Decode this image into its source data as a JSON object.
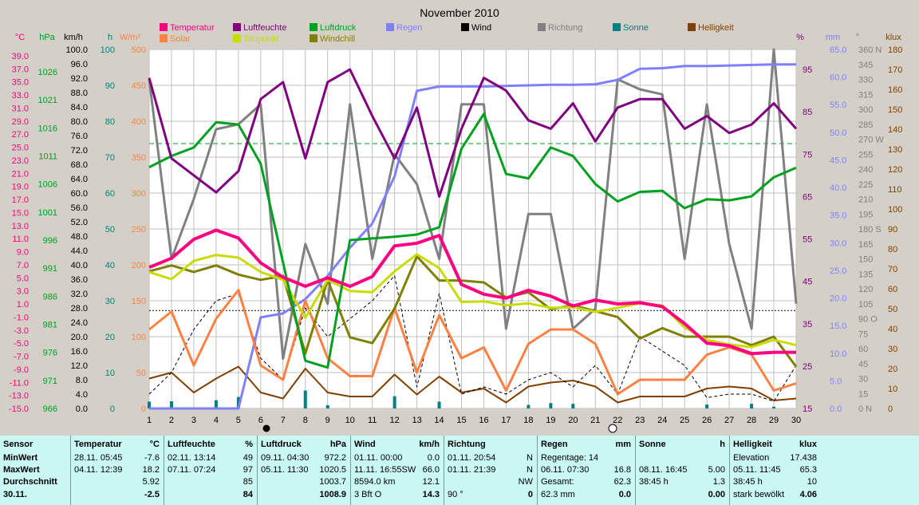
{
  "title": "November 2010",
  "legend": [
    {
      "name": "Temperatur",
      "color": "#ff0080"
    },
    {
      "name": "Solar",
      "color": "#ff8040"
    },
    {
      "name": "Luftfeuchte",
      "color": "#800080"
    },
    {
      "name": "Taupunkt",
      "color": "#c8dc00"
    },
    {
      "name": "Luftdruck",
      "color": "#00a020"
    },
    {
      "name": "Windchill",
      "color": "#808000"
    },
    {
      "name": "Regen",
      "color": "#8080ff"
    },
    {
      "name": "Wind",
      "color": "#000000"
    },
    {
      "name": "Richtung",
      "color": "#808080"
    },
    {
      "name": "Sonne",
      "color": "#008080"
    },
    {
      "name": "Helligkeit",
      "color": "#804000"
    }
  ],
  "axes": {
    "temp": {
      "unit": "°C",
      "color": "#ff0080",
      "ticks": [
        "39.0",
        "37.0",
        "35.0",
        "33.0",
        "31.0",
        "29.0",
        "27.0",
        "25.0",
        "23.0",
        "21.0",
        "19.0",
        "17.0",
        "15.0",
        "13.0",
        "11.0",
        "9.0",
        "7.0",
        "5.0",
        "3.0",
        "1.0",
        "-1.0",
        "-3.0",
        "-5.0",
        "-7.0",
        "-9.0",
        "-11.0",
        "-13.0",
        "-15.0"
      ]
    },
    "press": {
      "unit": "hPa",
      "color": "#00a020",
      "ticks": [
        "1026",
        "1021",
        "1016",
        "1011",
        "1006",
        "1001",
        "996",
        "991",
        "986",
        "981",
        "976",
        "971",
        "966"
      ]
    },
    "wind": {
      "unit": "km/h",
      "color": "#000000",
      "ticks": [
        "100.0",
        "96.0",
        "92.0",
        "88.0",
        "84.0",
        "80.0",
        "76.0",
        "72.0",
        "68.0",
        "64.0",
        "60.0",
        "56.0",
        "52.0",
        "48.0",
        "44.0",
        "40.0",
        "36.0",
        "32.0",
        "28.0",
        "24.0",
        "20.0",
        "16.0",
        "12.0",
        "8.0",
        "4.0",
        "0.0"
      ]
    },
    "sun": {
      "unit": "h",
      "color": "#008080",
      "ticks": [
        "100",
        "90",
        "80",
        "70",
        "60",
        "50",
        "40",
        "30",
        "20",
        "10",
        "0"
      ]
    },
    "solar": {
      "unit": "W/m²",
      "color": "#ff8040",
      "ticks": [
        "500",
        "450",
        "400",
        "350",
        "300",
        "250",
        "200",
        "150",
        "100",
        "50",
        "0"
      ]
    },
    "hum": {
      "unit": "%",
      "color": "#800080",
      "ticks": [
        "95",
        "85",
        "75",
        "65",
        "55",
        "45",
        "35",
        "25",
        "15"
      ]
    },
    "rain": {
      "unit": "mm",
      "color": "#8080ff",
      "ticks": [
        "65.0",
        "60.0",
        "55.0",
        "50.0",
        "45.0",
        "40.0",
        "35.0",
        "30.0",
        "25.0",
        "20.0",
        "15.0",
        "10.0",
        "5.0",
        "0.0"
      ]
    },
    "dir": {
      "unit": "°",
      "color": "#808080",
      "ticks": [
        "360 N",
        "345",
        "330",
        "315",
        "300",
        "285",
        "270 W",
        "255",
        "240",
        "225",
        "210",
        "195",
        "180 S",
        "165",
        "150",
        "135",
        "120",
        "105",
        "90 O",
        "75",
        "60",
        "45",
        "30",
        "15",
        "0 N"
      ]
    },
    "lux": {
      "unit": "klux",
      "color": "#804000",
      "ticks": [
        "180",
        "170",
        "160",
        "150",
        "140",
        "130",
        "120",
        "110",
        "100",
        "90",
        "80",
        "70",
        "60",
        "50",
        "40",
        "30",
        "20",
        "10",
        "0"
      ]
    }
  },
  "days": [
    "1",
    "2",
    "3",
    "4",
    "5",
    "6",
    "7",
    "8",
    "9",
    "10",
    "11",
    "12",
    "13",
    "14",
    "15",
    "16",
    "17",
    "18",
    "19",
    "20",
    "21",
    "22",
    "23",
    "24",
    "25",
    "26",
    "27",
    "28",
    "29",
    "30"
  ],
  "chart_data": {
    "type": "line",
    "title": "November 2010",
    "x": [
      1,
      2,
      3,
      4,
      5,
      6,
      7,
      8,
      9,
      10,
      11,
      12,
      13,
      14,
      15,
      16,
      17,
      18,
      19,
      20,
      21,
      22,
      23,
      24,
      25,
      26,
      27,
      28,
      29,
      30
    ],
    "series": [
      {
        "name": "Temperatur",
        "unit": "°C",
        "values": [
          6.6,
          8.0,
          10.9,
          12.3,
          11.1,
          7.3,
          5.1,
          3.7,
          5.0,
          3.7,
          5.2,
          9.9,
          10.3,
          11.5,
          4.0,
          2.5,
          1.9,
          3.1,
          2.2,
          0.7,
          1.6,
          1.0,
          1.2,
          0.6,
          -2.0,
          -5.0,
          -5.4,
          -6.6,
          -6.4,
          -6.4
        ]
      },
      {
        "name": "Solar",
        "unit": "W/m²",
        "values": [
          110,
          135,
          60,
          125,
          165,
          60,
          40,
          150,
          70,
          45,
          45,
          140,
          50,
          130,
          70,
          85,
          25,
          90,
          110,
          110,
          90,
          20,
          40,
          40,
          40,
          75,
          85,
          75,
          25,
          35
        ]
      },
      {
        "name": "Luftfeuchte",
        "unit": "%",
        "values": [
          93,
          74,
          70,
          66,
          71,
          88,
          92,
          74,
          92,
          95,
          84,
          74,
          86,
          65,
          81,
          93,
          90,
          83,
          81,
          87,
          78,
          86,
          88,
          88,
          81,
          84,
          80,
          82,
          87,
          81
        ]
      },
      {
        "name": "Taupunkt",
        "unit": "°C",
        "values": [
          5.9,
          4.8,
          7.6,
          8.5,
          8.1,
          5.9,
          4.7,
          -1.1,
          4.7,
          3.0,
          2.8,
          6.0,
          8.6,
          6.5,
          1.3,
          1.4,
          0.8,
          1.1,
          0.4,
          0.5,
          -0.2,
          0.4,
          1.1,
          0.8,
          -2.6,
          -4.5,
          -5.2,
          -5.6,
          -4.5,
          -5.3
        ]
      },
      {
        "name": "Luftdruck",
        "unit": "hPa",
        "values": [
          1009.0,
          1011.0,
          1012.5,
          1017.0,
          1016.6,
          1009.6,
          992.0,
          974.5,
          973.3,
          996.0,
          996.3,
          996.6,
          997.0,
          998.3,
          1012.3,
          1018.5,
          1007.8,
          1007.0,
          1012.5,
          1011.0,
          1006.0,
          1002.9,
          1004.6,
          1004.8,
          1001.7,
          1003.3,
          1003.1,
          1003.8,
          1007.2,
          1008.9
        ]
      },
      {
        "name": "Windchill",
        "unit": "°C",
        "values": [
          6.0,
          6.9,
          5.9,
          6.9,
          5.5,
          4.7,
          5.3,
          -6.6,
          4.7,
          -4.1,
          -5.0,
          0.3,
          8.3,
          4.6,
          4.6,
          4.3,
          2.0,
          2.8,
          0.2,
          0.8,
          -0.1,
          -1.0,
          -4.3,
          -2.7,
          -4.0,
          -4.0,
          -4.0,
          -5.3,
          -4.0,
          -8.6
        ]
      },
      {
        "name": "Regen",
        "unit": "mm",
        "values": [
          0.0,
          0.0,
          0.0,
          0.0,
          0.0,
          0.0,
          0.0,
          0.0,
          0.0,
          0.0,
          0.0,
          0.0,
          0.0,
          0.0,
          0.0,
          0.0,
          0.0,
          0.0,
          0.0,
          0.0,
          0.0,
          0.0,
          0.0,
          0.0,
          0.0,
          0.0,
          0.0,
          0.0,
          0.0,
          0.0
        ],
        "cumulative": [
          0.0,
          0.0,
          0.0,
          0.0,
          0.0,
          16.5,
          17.2,
          19.8,
          24.0,
          29.1,
          33.5,
          42.0,
          57.5,
          58.3,
          58.3,
          58.3,
          58.4,
          58.5,
          58.6,
          58.6,
          58.7,
          59.5,
          61.5,
          61.6,
          62.0,
          62.0,
          62.1,
          62.2,
          62.3,
          62.3
        ]
      },
      {
        "name": "Wind",
        "unit": "km/h",
        "values": [
          4.0,
          10.0,
          22.0,
          30.0,
          32.0,
          14.0,
          8.0,
          28.0,
          20.0,
          25.0,
          30.0,
          37.0,
          6.0,
          32.0,
          4.0,
          6.0,
          4.0,
          8.0,
          10.0,
          6.0,
          12.0,
          4.0,
          20.0,
          16.0,
          12.0,
          3.0,
          4.0,
          4.0,
          2.0,
          12.0
        ]
      },
      {
        "name": "Richtung",
        "unit": "°",
        "values": [
          330,
          150,
          210,
          280,
          285,
          305,
          50,
          165,
          105,
          305,
          150,
          255,
          225,
          150,
          305,
          305,
          80,
          195,
          195,
          80,
          100,
          330,
          320,
          315,
          150,
          305,
          165,
          80,
          360,
          105
        ]
      },
      {
        "name": "Sonne",
        "unit": "h",
        "values": [
          1.9,
          2.0,
          0.0,
          2.3,
          3.2,
          0.0,
          0.0,
          5.0,
          0.9,
          0.0,
          0.0,
          3.4,
          0.0,
          1.9,
          0.0,
          0.0,
          0.0,
          1.0,
          1.5,
          1.3,
          0.0,
          0.0,
          0.0,
          0.0,
          0.0,
          1.1,
          0.0,
          1.3,
          0.5,
          0.0
        ]
      },
      {
        "name": "Helligkeit",
        "unit": "klux",
        "values": [
          15,
          18,
          8,
          15,
          21,
          8,
          5,
          20,
          8,
          6,
          6,
          17,
          7,
          16,
          8,
          10,
          3,
          11,
          13,
          14,
          11,
          3,
          6,
          6,
          6,
          10,
          11,
          10,
          4,
          5
        ]
      }
    ],
    "reference_lines": [
      {
        "axis": "hPa",
        "value": 1013.2,
        "style": "dashed",
        "color": "#00a020"
      },
      {
        "axis": "°C",
        "value": 0.0,
        "style": "dotted",
        "color": "#000000"
      }
    ]
  },
  "stats": {
    "sensor": {
      "header": "Sensor",
      "rows": [
        "MinWert",
        "MaxWert",
        "Durchschnitt",
        "30.11."
      ]
    },
    "temperatur": {
      "header": "Temperatur",
      "unit": "°C",
      "rows": [
        [
          "28.11.  05:45",
          "-7.6"
        ],
        [
          "04.11.  12:39",
          "18.2"
        ],
        [
          "",
          "5.92"
        ],
        [
          "",
          "-2.5"
        ]
      ]
    },
    "luftfeuchte": {
      "header": "Luftfeuchte",
      "unit": "%",
      "rows": [
        [
          "02.11.  13:14",
          "49"
        ],
        [
          "07.11.  07:24",
          "97"
        ],
        [
          "",
          "85"
        ],
        [
          "",
          "84"
        ]
      ]
    },
    "luftdruck": {
      "header": "Luftdruck",
      "unit": "hPa",
      "rows": [
        [
          "09.11.  04:30",
          "972.2"
        ],
        [
          "05.11.  11:30",
          "1020.5"
        ],
        [
          "",
          "1003.7"
        ],
        [
          "",
          "1008.9"
        ]
      ]
    },
    "wind": {
      "header": "Wind",
      "unit": "km/h",
      "rows": [
        [
          "01.11.  00:00",
          "0.0"
        ],
        [
          "11.11.  16:55SW",
          "66.0"
        ],
        [
          "8594.0 km",
          "12.1"
        ],
        [
          "3 Bft O",
          "14.3"
        ]
      ]
    },
    "richtung": {
      "header": "Richtung",
      "rows": [
        [
          "01.11.  20:54",
          "N"
        ],
        [
          "01.11.  21:39",
          "N"
        ],
        [
          "",
          "NW"
        ],
        [
          "90 °",
          "0"
        ]
      ]
    },
    "regen": {
      "header": "Regen",
      "unit": "mm",
      "rows": [
        [
          "Regentage: 14",
          ""
        ],
        [
          "06.11.  07:30",
          "16.8"
        ],
        [
          "Gesamt:",
          "62.3"
        ],
        [
          "62.3 mm",
          "0.0"
        ]
      ]
    },
    "sonne": {
      "header": "Sonne",
      "unit": "h",
      "rows": [
        [
          "",
          ""
        ],
        [
          "08.11.  16:45",
          "5.00"
        ],
        [
          "38:45 h",
          "1.3"
        ],
        [
          "",
          "0.00"
        ]
      ]
    },
    "helligkeit": {
      "header": "Helligkeit",
      "unit": "klux",
      "rows": [
        [
          "Elevation",
          "17.438"
        ],
        [
          "05.11.  11:45",
          "65.3"
        ],
        [
          "38:45 h",
          "10"
        ],
        [
          "stark bewölkt",
          "4.06"
        ]
      ]
    }
  }
}
